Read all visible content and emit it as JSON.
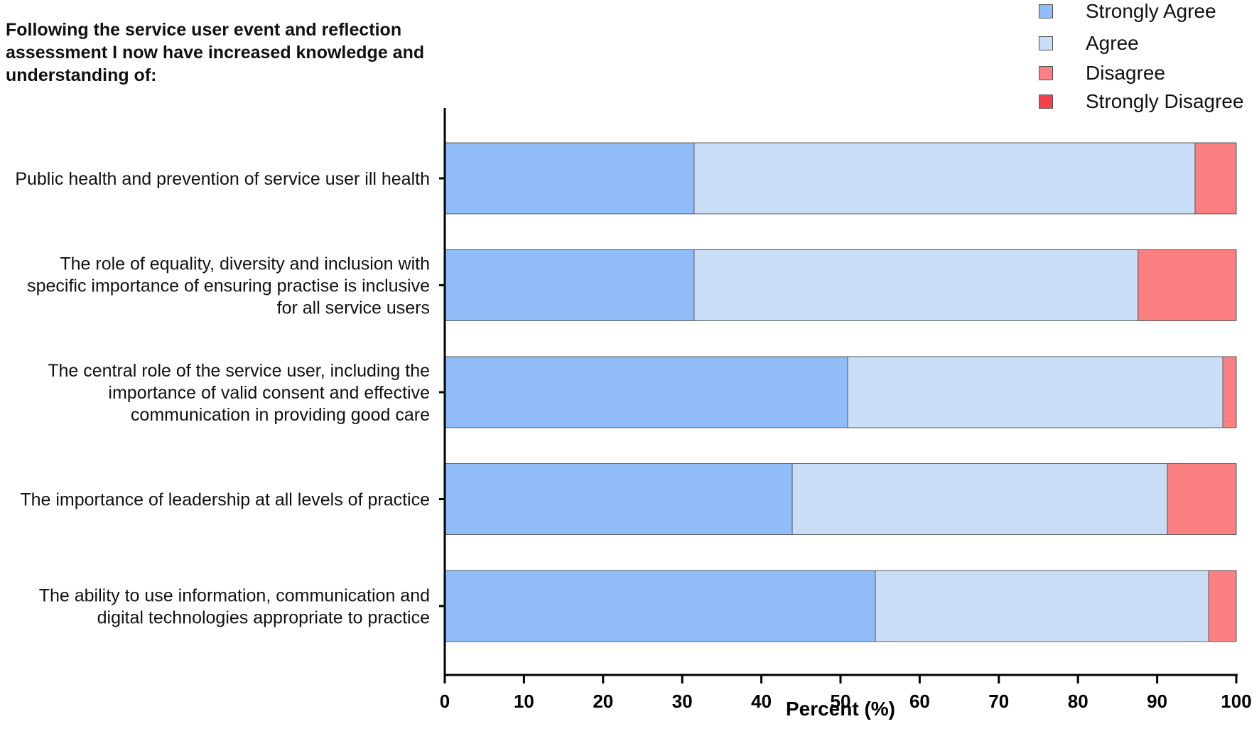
{
  "chart_data": {
    "type": "bar",
    "orientation": "horizontal",
    "stacked": true,
    "title": "Following the service user event and reflection assessment I now have increased knowledge and understanding of:",
    "xlabel": "Percent (%)",
    "ylabel": "",
    "xlim": [
      0,
      100
    ],
    "x_ticks": [
      "0",
      "10",
      "20",
      "30",
      "40",
      "50",
      "60",
      "70",
      "80",
      "90",
      "100"
    ],
    "categories": [
      [
        "Public health and prevention of service user ill health"
      ],
      [
        "The role of equality, diversity and inclusion with",
        "specific importance of ensuring practise is inclusive",
        "for all service users"
      ],
      [
        "The central role of the service user, including the",
        "importance of valid consent and effective",
        "communication in providing good care"
      ],
      [
        "The importance of leadership at all levels of practice"
      ],
      [
        "The ability to use information, communication and",
        "digital technologies appropriate to practice"
      ]
    ],
    "series": [
      {
        "name": "Strongly Agree",
        "color": "#90BDF8",
        "values": [
          31.5,
          31.5,
          50.9,
          43.9,
          54.4
        ]
      },
      {
        "name": "Agree",
        "color": "#C9DDF7",
        "values": [
          63.3,
          56.1,
          47.4,
          47.4,
          42.1
        ]
      },
      {
        "name": "Disagree",
        "color": "#FC8081",
        "values": [
          5.2,
          12.4,
          1.7,
          8.7,
          3.5
        ]
      },
      {
        "name": "Strongly Disagree",
        "color": "#F5424A",
        "values": [
          0,
          0,
          0,
          0,
          0
        ]
      }
    ],
    "legend_position": "top-right",
    "grid": false
  }
}
